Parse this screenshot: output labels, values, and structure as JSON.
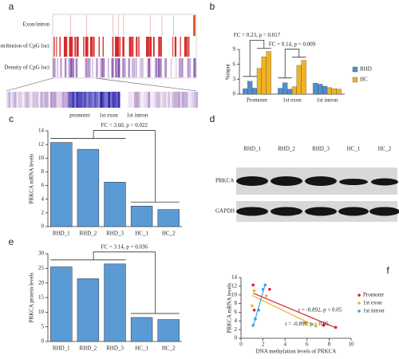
{
  "panel_labels": [
    "a",
    "b",
    "c",
    "d",
    "e",
    "f"
  ],
  "panel_a": {
    "tracks": [
      "Exon/intron",
      "Distribution of CpG loci",
      "Density of CpG loci"
    ],
    "regions": [
      "promoter",
      "1st exon",
      "1st intron"
    ]
  },
  "blot": {
    "lanes": [
      "RHD_1",
      "RHD_2",
      "RHD_3",
      "HC_1",
      "HC_2"
    ],
    "proteins": [
      "PRKCA",
      "GAPDH"
    ]
  },
  "chart_data": [
    {
      "type": "grouped_bar",
      "ylabel": "%input",
      "categories": [
        "Promoter",
        "1st exon",
        "1st intron"
      ],
      "series": [
        {
          "name": "RHD",
          "color": "#4f8fd0",
          "values": [
            [
              1.1,
              2.6,
              1.2
            ],
            [
              1.2,
              2.3,
              1.0
            ],
            [
              2.2,
              2.0,
              1.6
            ]
          ]
        },
        {
          "name": "HC",
          "color": "#f0b323",
          "values": [
            [
              5.2,
              7.5,
              8.6
            ],
            [
              1.5,
              5.8,
              6.8
            ],
            [
              1.3,
              1.1,
              1.0
            ]
          ]
        }
      ],
      "ylim": [
        0,
        9
      ],
      "yticks": [
        0,
        3,
        6,
        9
      ],
      "annotations": [
        "FC = 0.23, p = 0.017",
        "FC = 0.14, p = 0.009"
      ]
    },
    {
      "type": "bar",
      "ylabel": "PRKCA mRNA levels",
      "categories": [
        "RHD_1",
        "RHD_2",
        "RHD_3",
        "HC_1",
        "HC_2"
      ],
      "values": [
        12.3,
        11.3,
        6.5,
        3.0,
        2.5
      ],
      "color": "#5b9bd5",
      "ylim": [
        0,
        14
      ],
      "yticks": [
        0,
        2,
        4,
        6,
        8,
        10,
        12,
        14
      ],
      "annotations": [
        "FC = 3.60, p = 0.022"
      ]
    },
    {
      "type": "bar",
      "ylabel": "PRKCA protein levels",
      "categories": [
        "RHD_1",
        "RHD_2",
        "RHD_3",
        "HC_1",
        "HC_2"
      ],
      "values": [
        25.5,
        21.5,
        26.5,
        8.2,
        7.5
      ],
      "color": "#5b9bd5",
      "ylim": [
        0,
        30
      ],
      "yticks": [
        0,
        5,
        10,
        15,
        20,
        25,
        30
      ],
      "annotations": [
        "FC = 3.14, p = 0.036"
      ]
    },
    {
      "type": "scatter",
      "xlabel": "DNA methylation levels of PRKCA",
      "ylabel": "PRKCA mRNA levels",
      "xlim": [
        0,
        10
      ],
      "ylim": [
        0,
        14
      ],
      "xticks": [
        0,
        2,
        4,
        6,
        8,
        10
      ],
      "yticks": [
        0,
        2,
        4,
        6,
        8,
        10,
        12,
        14
      ],
      "series": [
        {
          "name": "Promoter",
          "color": "#e0202a",
          "x": [
            1.1,
            2.6,
            1.2,
            7.5,
            8.6
          ],
          "y": [
            12.3,
            11.3,
            6.5,
            3.0,
            2.5
          ]
        },
        {
          "name": "1st exon",
          "color": "#f0b323",
          "x": [
            1.2,
            2.3,
            1.0,
            5.8,
            6.8
          ],
          "y": [
            11.0,
            9.8,
            7.5,
            3.5,
            2.8
          ]
        },
        {
          "name": "1st intron",
          "color": "#3da0e0",
          "x": [
            2.2,
            2.0,
            1.6,
            1.3,
            1.1
          ],
          "y": [
            12.3,
            11.3,
            6.5,
            4.5,
            3.0
          ]
        }
      ],
      "annotations": [
        "r = -0.892, p < 0.05",
        "r = -0.899, p < 0.05"
      ]
    }
  ]
}
